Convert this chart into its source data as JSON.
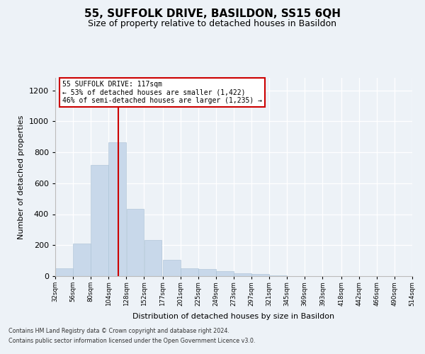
{
  "title": "55, SUFFOLK DRIVE, BASILDON, SS15 6QH",
  "subtitle": "Size of property relative to detached houses in Basildon",
  "xlabel": "Distribution of detached houses by size in Basildon",
  "ylabel": "Number of detached properties",
  "bar_color": "#c8d8ea",
  "bar_edgecolor": "#a8c0d4",
  "vline_x": 117,
  "vline_color": "#cc0000",
  "annotation_line1": "55 SUFFOLK DRIVE: 117sqm",
  "annotation_line2": "← 53% of detached houses are smaller (1,422)",
  "annotation_line3": "46% of semi-detached houses are larger (1,235) →",
  "bin_edges": [
    32,
    56,
    80,
    104,
    128,
    152,
    177,
    201,
    225,
    249,
    273,
    297,
    321,
    345,
    369,
    393,
    418,
    442,
    466,
    490,
    514
  ],
  "bar_heights": [
    50,
    210,
    720,
    865,
    435,
    235,
    105,
    50,
    45,
    30,
    20,
    15,
    5,
    0,
    0,
    0,
    0,
    0,
    0,
    0
  ],
  "xtick_labels": [
    "32sqm",
    "56sqm",
    "80sqm",
    "104sqm",
    "128sqm",
    "152sqm",
    "177sqm",
    "201sqm",
    "225sqm",
    "249sqm",
    "273sqm",
    "297sqm",
    "321sqm",
    "345sqm",
    "369sqm",
    "393sqm",
    "418sqm",
    "442sqm",
    "466sqm",
    "490sqm",
    "514sqm"
  ],
  "ylim": [
    0,
    1280
  ],
  "yticks": [
    0,
    200,
    400,
    600,
    800,
    1000,
    1200
  ],
  "footer_line1": "Contains HM Land Registry data © Crown copyright and database right 2024.",
  "footer_line2": "Contains public sector information licensed under the Open Government Licence v3.0.",
  "background_color": "#edf2f7",
  "plot_bg_color": "#edf2f7",
  "title_fontsize": 11,
  "subtitle_fontsize": 9,
  "annotation_box_edgecolor": "#cc0000",
  "annotation_box_facecolor": "white"
}
